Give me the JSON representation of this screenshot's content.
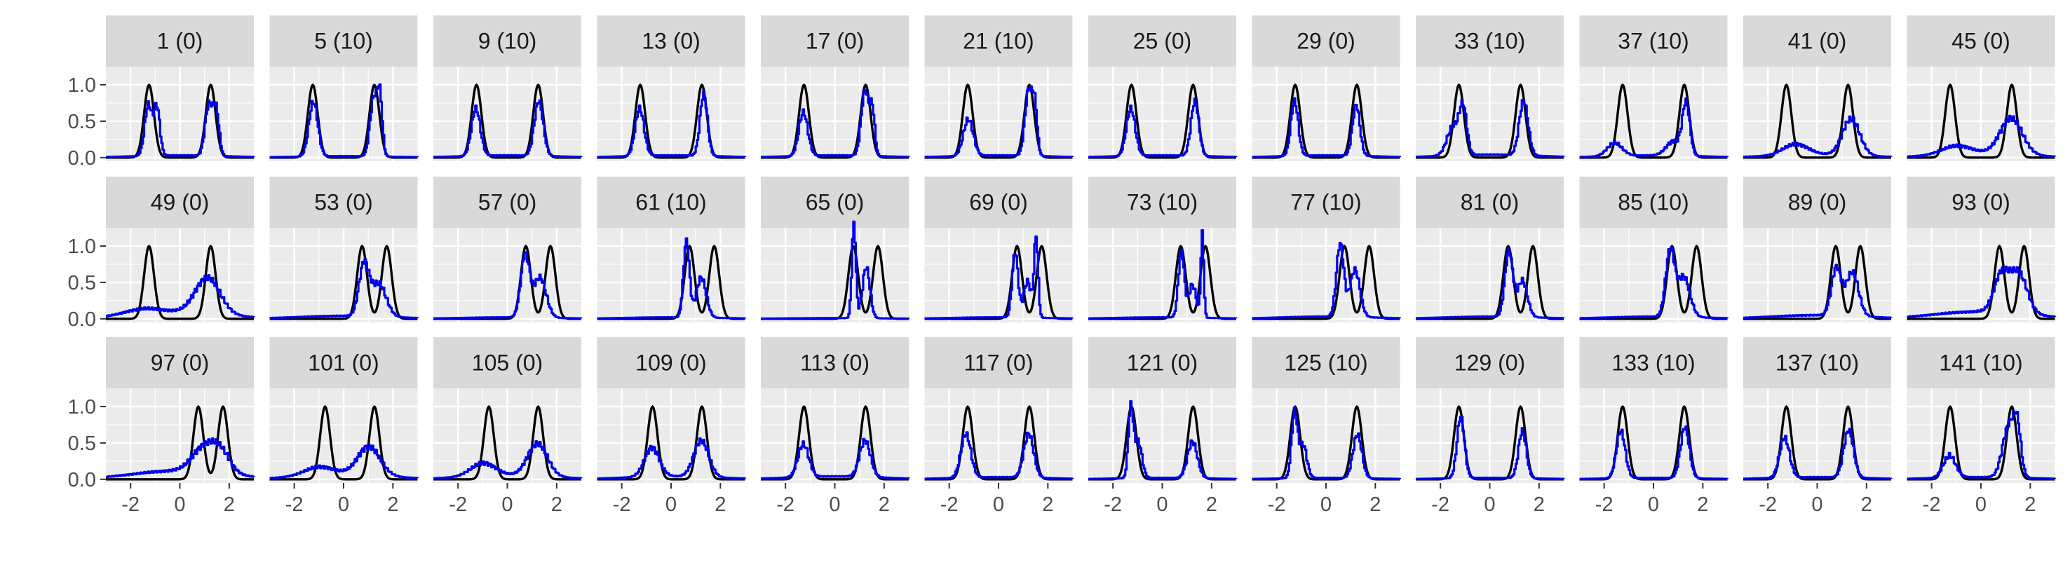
{
  "chart_data": {
    "type": "line",
    "title": "",
    "xlabel": "",
    "ylabel": "",
    "facet_layout": {
      "rows": 3,
      "cols": 12
    },
    "xlim": [
      -3,
      3
    ],
    "ylim": [
      -0.05,
      1.25
    ],
    "x_ticks": [
      -2,
      0,
      2
    ],
    "x_tick_labels": [
      "-2",
      "0",
      "2"
    ],
    "y_ticks": [
      0.0,
      0.5,
      1.0
    ],
    "y_tick_labels": [
      "0.0",
      "0.5",
      "1.0"
    ],
    "grid": true,
    "legend": "none",
    "series_styles": [
      {
        "role": "reference",
        "color": "#000000"
      },
      {
        "role": "estimate",
        "color": "#0000ee"
      }
    ],
    "colors": {
      "panel_bg": "#ebebeb",
      "strip_bg": "#d9d9d9",
      "grid": "#ffffff",
      "tick_text": "#4d4d4d",
      "strip_text": "#1a1a1a"
    },
    "panels": [
      {
        "label": "1 (0)",
        "ref": [
          [
            -1.25,
            0.2
          ],
          [
            1.25,
            0.2
          ]
        ],
        "est": {
          "peaks": [
            [
              -1.3,
              0.7,
              0.15
            ],
            [
              -0.95,
              0.65,
              0.12
            ],
            [
              1.15,
              0.7,
              0.15
            ],
            [
              1.45,
              0.6,
              0.12
            ]
          ],
          "base": 0.03
        }
      },
      {
        "label": "5 (10)",
        "ref": [
          [
            -1.25,
            0.2
          ],
          [
            1.25,
            0.2
          ]
        ],
        "est": {
          "peaks": [
            [
              -1.25,
              0.75,
              0.18
            ],
            [
              1.2,
              0.8,
              0.15
            ],
            [
              1.45,
              0.75,
              0.1
            ]
          ],
          "base": 0.02
        }
      },
      {
        "label": "9 (10)",
        "ref": [
          [
            -1.25,
            0.2
          ],
          [
            1.25,
            0.2
          ]
        ],
        "est": {
          "peaks": [
            [
              -1.3,
              0.65,
              0.18
            ],
            [
              1.25,
              0.75,
              0.18
            ]
          ],
          "base": 0.03
        }
      },
      {
        "label": "13 (0)",
        "ref": [
          [
            -1.25,
            0.2
          ],
          [
            1.25,
            0.2
          ]
        ],
        "est": {
          "peaks": [
            [
              -1.3,
              0.65,
              0.18
            ],
            [
              1.3,
              0.85,
              0.15
            ]
          ],
          "base": 0.03
        }
      },
      {
        "label": "17 (0)",
        "ref": [
          [
            -1.25,
            0.2
          ],
          [
            1.25,
            0.2
          ]
        ],
        "est": {
          "peaks": [
            [
              -1.3,
              0.6,
              0.18
            ],
            [
              1.2,
              0.9,
              0.15
            ],
            [
              1.5,
              0.6,
              0.1
            ]
          ],
          "base": 0.03
        }
      },
      {
        "label": "21 (10)",
        "ref": [
          [
            -1.25,
            0.2
          ],
          [
            1.25,
            0.2
          ]
        ],
        "est": {
          "peaks": [
            [
              -1.25,
              0.5,
              0.2
            ],
            [
              1.2,
              0.9,
              0.15
            ],
            [
              1.45,
              0.6,
              0.1
            ]
          ],
          "base": 0.03
        }
      },
      {
        "label": "25 (0)",
        "ref": [
          [
            -1.25,
            0.2
          ],
          [
            1.25,
            0.2
          ]
        ],
        "est": {
          "peaks": [
            [
              -1.3,
              0.65,
              0.18
            ],
            [
              1.3,
              0.75,
              0.16
            ]
          ],
          "base": 0.03
        }
      },
      {
        "label": "29 (0)",
        "ref": [
          [
            -1.25,
            0.2
          ],
          [
            1.25,
            0.2
          ]
        ],
        "est": {
          "peaks": [
            [
              -1.3,
              0.75,
              0.15
            ],
            [
              1.2,
              0.7,
              0.15
            ]
          ],
          "base": 0.03
        }
      },
      {
        "label": "33 (10)",
        "ref": [
          [
            -1.25,
            0.2
          ],
          [
            1.25,
            0.2
          ]
        ],
        "est": {
          "peaks": [
            [
              -1.5,
              0.4,
              0.25
            ],
            [
              -1.1,
              0.6,
              0.15
            ],
            [
              1.35,
              0.75,
              0.18
            ]
          ],
          "base": 0.04
        }
      },
      {
        "label": "37 (10)",
        "ref": [
          [
            -1.25,
            0.2
          ],
          [
            1.25,
            0.2
          ]
        ],
        "est": {
          "peaks": [
            [
              -1.6,
              0.18,
              0.3
            ],
            [
              1.3,
              0.7,
              0.15
            ],
            [
              0.8,
              0.2,
              0.3
            ]
          ],
          "base": 0.03
        }
      },
      {
        "label": "41 (0)",
        "ref": [
          [
            -1.25,
            0.2
          ],
          [
            1.25,
            0.2
          ]
        ],
        "est": {
          "peaks": [
            [
              -0.9,
              0.15,
              0.5
            ],
            [
              1.35,
              0.5,
              0.35
            ]
          ],
          "base": 0.04
        }
      },
      {
        "label": "45 (0)",
        "ref": [
          [
            -1.25,
            0.2
          ],
          [
            1.25,
            0.2
          ]
        ],
        "est": {
          "peaks": [
            [
              -1.0,
              0.12,
              0.6
            ],
            [
              1.2,
              0.5,
              0.45
            ]
          ],
          "base": 0.05
        }
      },
      {
        "label": "49 (0)",
        "ref": [
          [
            -1.25,
            0.2
          ],
          [
            1.25,
            0.2
          ]
        ],
        "est": {
          "peaks": [
            [
              -1.5,
              0.08,
              0.8
            ],
            [
              1.1,
              0.5,
              0.5
            ]
          ],
          "base": 0.08
        }
      },
      {
        "label": "53 (0)",
        "ref": [
          [
            0.75,
            0.2
          ],
          [
            1.75,
            0.2
          ]
        ],
        "est": {
          "peaks": [
            [
              0.8,
              0.7,
              0.2
            ],
            [
              1.4,
              0.45,
              0.3
            ]
          ],
          "base": 0.04
        }
      },
      {
        "label": "57 (0)",
        "ref": [
          [
            0.75,
            0.2
          ],
          [
            1.75,
            0.2
          ]
        ],
        "est": {
          "peaks": [
            [
              0.7,
              0.85,
              0.18
            ],
            [
              1.3,
              0.55,
              0.25
            ]
          ],
          "base": 0.02
        }
      },
      {
        "label": "61 (10)",
        "ref": [
          [
            0.75,
            0.2
          ],
          [
            1.75,
            0.2
          ]
        ],
        "est": {
          "peaks": [
            [
              0.6,
              1.05,
              0.12
            ],
            [
              1.2,
              0.55,
              0.2
            ]
          ],
          "base": 0.02
        }
      },
      {
        "label": "65 (0)",
        "ref": [
          [
            0.75,
            0.2
          ],
          [
            1.75,
            0.2
          ]
        ],
        "est": {
          "peaks": [
            [
              0.75,
              1.3,
              0.08
            ],
            [
              1.25,
              0.7,
              0.15
            ]
          ],
          "base": 0.01
        }
      },
      {
        "label": "69 (0)",
        "ref": [
          [
            0.75,
            0.2
          ],
          [
            1.75,
            0.2
          ]
        ],
        "est": {
          "peaks": [
            [
              0.65,
              0.9,
              0.12
            ],
            [
              1.5,
              1.1,
              0.08
            ],
            [
              1.15,
              0.5,
              0.15
            ]
          ],
          "base": 0.02
        }
      },
      {
        "label": "73 (10)",
        "ref": [
          [
            0.75,
            0.2
          ],
          [
            1.75,
            0.2
          ]
        ],
        "est": {
          "peaks": [
            [
              0.75,
              0.9,
              0.12
            ],
            [
              1.6,
              1.15,
              0.06
            ],
            [
              1.2,
              0.45,
              0.15
            ]
          ],
          "base": 0.02
        }
      },
      {
        "label": "77 (10)",
        "ref": [
          [
            0.75,
            0.2
          ],
          [
            1.75,
            0.2
          ]
        ],
        "est": {
          "peaks": [
            [
              0.55,
              1.0,
              0.15
            ],
            [
              1.15,
              0.65,
              0.2
            ]
          ],
          "base": 0.03
        }
      },
      {
        "label": "81 (0)",
        "ref": [
          [
            0.75,
            0.2
          ],
          [
            1.75,
            0.2
          ]
        ],
        "est": {
          "peaks": [
            [
              0.75,
              0.9,
              0.16
            ],
            [
              1.3,
              0.5,
              0.2
            ]
          ],
          "base": 0.03
        }
      },
      {
        "label": "85 (10)",
        "ref": [
          [
            0.75,
            0.2
          ],
          [
            1.75,
            0.2
          ]
        ],
        "est": {
          "peaks": [
            [
              0.65,
              0.9,
              0.18
            ],
            [
              1.2,
              0.55,
              0.25
            ]
          ],
          "base": 0.03
        }
      },
      {
        "label": "89 (0)",
        "ref": [
          [
            0.75,
            0.2
          ],
          [
            1.75,
            0.2
          ]
        ],
        "est": {
          "peaks": [
            [
              0.75,
              0.65,
              0.2
            ],
            [
              1.4,
              0.6,
              0.25
            ]
          ],
          "base": 0.05
        }
      },
      {
        "label": "93 (0)",
        "ref": [
          [
            0.75,
            0.2
          ],
          [
            1.75,
            0.2
          ]
        ],
        "est": {
          "peaks": [
            [
              0.8,
              0.5,
              0.3
            ],
            [
              1.5,
              0.55,
              0.35
            ]
          ],
          "base": 0.1
        }
      },
      {
        "label": "97 (0)",
        "ref": [
          [
            0.75,
            0.2
          ],
          [
            1.75,
            0.2
          ]
        ],
        "est": {
          "peaks": [
            [
              0.9,
              0.3,
              0.45
            ],
            [
              1.6,
              0.3,
              0.4
            ]
          ],
          "base": 0.12
        }
      },
      {
        "label": "101 (0)",
        "ref": [
          [
            -0.75,
            0.2
          ],
          [
            1.25,
            0.2
          ]
        ],
        "est": {
          "peaks": [
            [
              -1.0,
              0.12,
              0.6
            ],
            [
              1.0,
              0.4,
              0.45
            ]
          ],
          "base": 0.06
        }
      },
      {
        "label": "105 (0)",
        "ref": [
          [
            -0.75,
            0.2
          ],
          [
            1.25,
            0.2
          ]
        ],
        "est": {
          "peaks": [
            [
              -1.0,
              0.18,
              0.5
            ],
            [
              1.2,
              0.45,
              0.4
            ]
          ],
          "base": 0.05
        }
      },
      {
        "label": "109 (0)",
        "ref": [
          [
            -0.75,
            0.2
          ],
          [
            1.25,
            0.2
          ]
        ],
        "est": {
          "peaks": [
            [
              -0.8,
              0.4,
              0.3
            ],
            [
              1.2,
              0.5,
              0.3
            ]
          ],
          "base": 0.04
        }
      },
      {
        "label": "113 (0)",
        "ref": [
          [
            -1.25,
            0.2
          ],
          [
            1.25,
            0.2
          ]
        ],
        "est": {
          "peaks": [
            [
              -1.3,
              0.45,
              0.22
            ],
            [
              1.2,
              0.5,
              0.22
            ]
          ],
          "base": 0.04
        }
      },
      {
        "label": "117 (0)",
        "ref": [
          [
            -1.25,
            0.2
          ],
          [
            1.25,
            0.2
          ]
        ],
        "est": {
          "peaks": [
            [
              -1.35,
              0.6,
              0.2
            ],
            [
              1.2,
              0.6,
              0.2
            ]
          ],
          "base": 0.03
        }
      },
      {
        "label": "121 (0)",
        "ref": [
          [
            -1.25,
            0.2
          ],
          [
            1.25,
            0.2
          ]
        ],
        "est": {
          "peaks": [
            [
              -1.3,
              0.95,
              0.1
            ],
            [
              -1.0,
              0.5,
              0.15
            ],
            [
              1.2,
              0.5,
              0.2
            ]
          ],
          "base": 0.02
        }
      },
      {
        "label": "125 (10)",
        "ref": [
          [
            -1.25,
            0.2
          ],
          [
            1.25,
            0.2
          ]
        ],
        "est": {
          "peaks": [
            [
              -1.3,
              0.9,
              0.12
            ],
            [
              -0.95,
              0.45,
              0.15
            ],
            [
              1.25,
              0.6,
              0.18
            ]
          ],
          "base": 0.02
        }
      },
      {
        "label": "129 (0)",
        "ref": [
          [
            -1.25,
            0.2
          ],
          [
            1.25,
            0.2
          ]
        ],
        "est": {
          "peaks": [
            [
              -1.2,
              0.85,
              0.15
            ],
            [
              1.3,
              0.65,
              0.16
            ]
          ],
          "base": 0.02
        }
      },
      {
        "label": "133 (10)",
        "ref": [
          [
            -1.25,
            0.2
          ],
          [
            1.25,
            0.2
          ]
        ],
        "est": {
          "peaks": [
            [
              -1.35,
              0.65,
              0.18
            ],
            [
              1.25,
              0.7,
              0.18
            ]
          ],
          "base": 0.02
        }
      },
      {
        "label": "137 (10)",
        "ref": [
          [
            -1.25,
            0.2
          ],
          [
            1.25,
            0.2
          ]
        ],
        "est": {
          "peaks": [
            [
              -1.35,
              0.55,
              0.2
            ],
            [
              1.25,
              0.65,
              0.2
            ]
          ],
          "base": 0.03
        }
      },
      {
        "label": "141 (10)",
        "ref": [
          [
            -1.25,
            0.2
          ],
          [
            1.25,
            0.2
          ]
        ],
        "est": {
          "peaks": [
            [
              -1.3,
              0.3,
              0.25
            ],
            [
              1.1,
              0.7,
              0.25
            ],
            [
              1.45,
              0.6,
              0.15
            ]
          ],
          "base": 0.03
        }
      }
    ]
  }
}
